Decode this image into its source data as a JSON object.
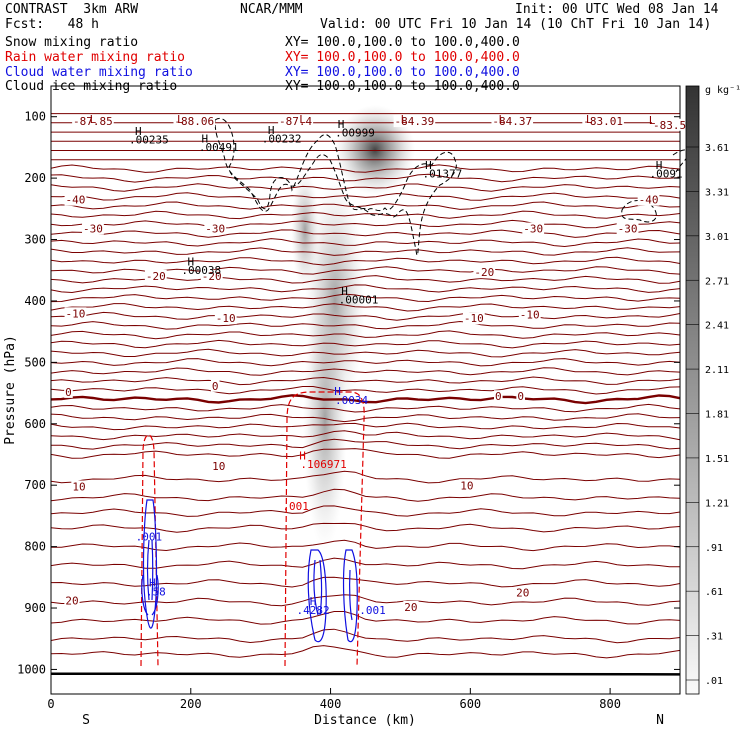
{
  "header": {
    "left_title": "CONTRAST  3km ARW",
    "center_title": "NCAR/MMM",
    "init_line": "Init: 00 UTC Wed 08 Jan 14",
    "fcst_line": "Fcst:   48 h",
    "valid_line": "Valid: 00 UTC Fri 10 Jan 14 (10 ChT Fri 10 Jan 14)"
  },
  "fields": [
    {
      "label": "Snow mixing ratio",
      "xy": "XY= 100.0,100.0 to 100.0,400.0",
      "color": "#000000"
    },
    {
      "label": "Rain water mixing ratio",
      "xy": "XY= 100.0,100.0 to 100.0,400.0",
      "color": "#e00000"
    },
    {
      "label": "Cloud water mixing ratio",
      "xy": "XY= 100.0,100.0 to 100.0,400.0",
      "color": "#1010e0"
    },
    {
      "label": "Cloud ice mixing ratio",
      "xy": "XY= 100.0,100.0 to 100.0,400.0",
      "color": "#000000"
    }
  ],
  "chart_data": {
    "type": "cross-section contour",
    "xlabel": "Distance (km)",
    "ylabel": "Pressure (hPa)",
    "x_ticks": [
      0,
      200,
      400,
      600,
      800
    ],
    "x_range": [
      0,
      900
    ],
    "y_ticks": [
      100,
      200,
      300,
      400,
      500,
      600,
      700,
      800,
      900,
      1000
    ],
    "y_range": [
      50,
      1040
    ],
    "left_end": "S",
    "right_end": "N",
    "colorbar": {
      "unit": "g kg⁻¹",
      "ticks": [
        "3.61",
        "3.31",
        "3.01",
        "2.71",
        "2.41",
        "2.11",
        "1.81",
        "1.51",
        "1.21",
        ".91",
        ".61",
        ".31",
        ".01"
      ]
    },
    "temperature_labels": [
      {
        "x": 60,
        "p": 112,
        "text": "-87.85"
      },
      {
        "x": 205,
        "p": 112,
        "text": "-88.06"
      },
      {
        "x": 350,
        "p": 112,
        "text": "-87.4"
      },
      {
        "x": 520,
        "p": 112,
        "text": "-84.39"
      },
      {
        "x": 660,
        "p": 112,
        "text": "-84.37"
      },
      {
        "x": 790,
        "p": 112,
        "text": "-83.01"
      },
      {
        "x": 885,
        "p": 118,
        "text": "-83.5"
      },
      {
        "x": 35,
        "p": 240,
        "text": "-40"
      },
      {
        "x": 855,
        "p": 240,
        "text": "-40"
      },
      {
        "x": 60,
        "p": 287,
        "text": "-30"
      },
      {
        "x": 235,
        "p": 287,
        "text": "-30"
      },
      {
        "x": 690,
        "p": 287,
        "text": "-30"
      },
      {
        "x": 825,
        "p": 287,
        "text": "-30"
      },
      {
        "x": 150,
        "p": 364,
        "text": "-20"
      },
      {
        "x": 230,
        "p": 364,
        "text": "-20"
      },
      {
        "x": 620,
        "p": 358,
        "text": "-20"
      },
      {
        "x": 35,
        "p": 425,
        "text": "-10"
      },
      {
        "x": 250,
        "p": 433,
        "text": "-10"
      },
      {
        "x": 605,
        "p": 433,
        "text": "-10"
      },
      {
        "x": 685,
        "p": 427,
        "text": "-10"
      },
      {
        "x": 25,
        "p": 553,
        "text": "0"
      },
      {
        "x": 235,
        "p": 543,
        "text": "0"
      },
      {
        "x": 640,
        "p": 560,
        "text": "0"
      },
      {
        "x": 672,
        "p": 560,
        "text": "0"
      },
      {
        "x": 240,
        "p": 674,
        "text": "10"
      },
      {
        "x": 40,
        "p": 707,
        "text": "10"
      },
      {
        "x": 595,
        "p": 705,
        "text": "10"
      },
      {
        "x": 30,
        "p": 893,
        "text": "20"
      },
      {
        "x": 515,
        "p": 903,
        "text": "20"
      },
      {
        "x": 675,
        "p": 880,
        "text": "20"
      }
    ],
    "extrema_labels": [
      {
        "x": 60,
        "p": 110,
        "text": "L",
        "color": "#8b0000"
      },
      {
        "x": 185,
        "p": 110,
        "text": "L",
        "color": "#8b0000"
      },
      {
        "x": 360,
        "p": 110,
        "text": "L",
        "color": "#8b0000"
      },
      {
        "x": 505,
        "p": 110,
        "text": "L",
        "color": "#8b0000"
      },
      {
        "x": 645,
        "p": 110,
        "text": "L",
        "color": "#8b0000"
      },
      {
        "x": 770,
        "p": 110,
        "text": "L",
        "color": "#8b0000"
      },
      {
        "x": 860,
        "p": 112,
        "text": "L",
        "color": "#8b0000"
      },
      {
        "x": 125,
        "p": 130,
        "text": "H",
        "color": "#000000"
      },
      {
        "x": 140,
        "p": 144,
        "text": ".00235",
        "color": "#000000"
      },
      {
        "x": 220,
        "p": 142,
        "text": "H",
        "color": "#000000"
      },
      {
        "x": 240,
        "p": 156,
        "text": ".00491",
        "color": "#000000"
      },
      {
        "x": 315,
        "p": 128,
        "text": "H",
        "color": "#000000"
      },
      {
        "x": 330,
        "p": 142,
        "text": ".00232",
        "color": "#000000"
      },
      {
        "x": 415,
        "p": 118,
        "text": "H",
        "color": "#000000"
      },
      {
        "x": 435,
        "p": 132,
        "text": ".00999",
        "color": "#000000"
      },
      {
        "x": 540,
        "p": 185,
        "text": "H",
        "color": "#000000"
      },
      {
        "x": 560,
        "p": 199,
        "text": ".01377",
        "color": "#000000"
      },
      {
        "x": 870,
        "p": 185,
        "text": "H",
        "color": "#000000"
      },
      {
        "x": 880,
        "p": 199,
        "text": ".0091",
        "color": "#000000"
      },
      {
        "x": 200,
        "p": 342,
        "text": "H",
        "color": "#000000"
      },
      {
        "x": 215,
        "p": 356,
        "text": ".00038",
        "color": "#000000"
      },
      {
        "x": 420,
        "p": 390,
        "text": "H",
        "color": "#000000"
      },
      {
        "x": 440,
        "p": 404,
        "text": ".00001",
        "color": "#000000"
      },
      {
        "x": 410,
        "p": 553,
        "text": "H",
        "color": "#1010e0"
      },
      {
        "x": 430,
        "p": 568,
        "text": ".0034",
        "color": "#1010e0"
      },
      {
        "x": 360,
        "p": 658,
        "text": "H",
        "color": "#e00000"
      },
      {
        "x": 390,
        "p": 672,
        "text": ".106971",
        "color": "#e00000"
      },
      {
        "x": 350,
        "p": 740,
        "text": ".001",
        "color": "#e00000"
      },
      {
        "x": 140,
        "p": 790,
        "text": ".001",
        "color": "#1010e0"
      },
      {
        "x": 145,
        "p": 865,
        "text": "H",
        "color": "#1010e0"
      },
      {
        "x": 150,
        "p": 880,
        "text": ".58",
        "color": "#1010e0"
      },
      {
        "x": 375,
        "p": 895,
        "text": "H",
        "color": "#1010e0"
      },
      {
        "x": 375,
        "p": 910,
        "text": ".4282",
        "color": "#1010e0"
      },
      {
        "x": 460,
        "p": 910,
        "text": ".001",
        "color": "#1010e0"
      }
    ]
  }
}
